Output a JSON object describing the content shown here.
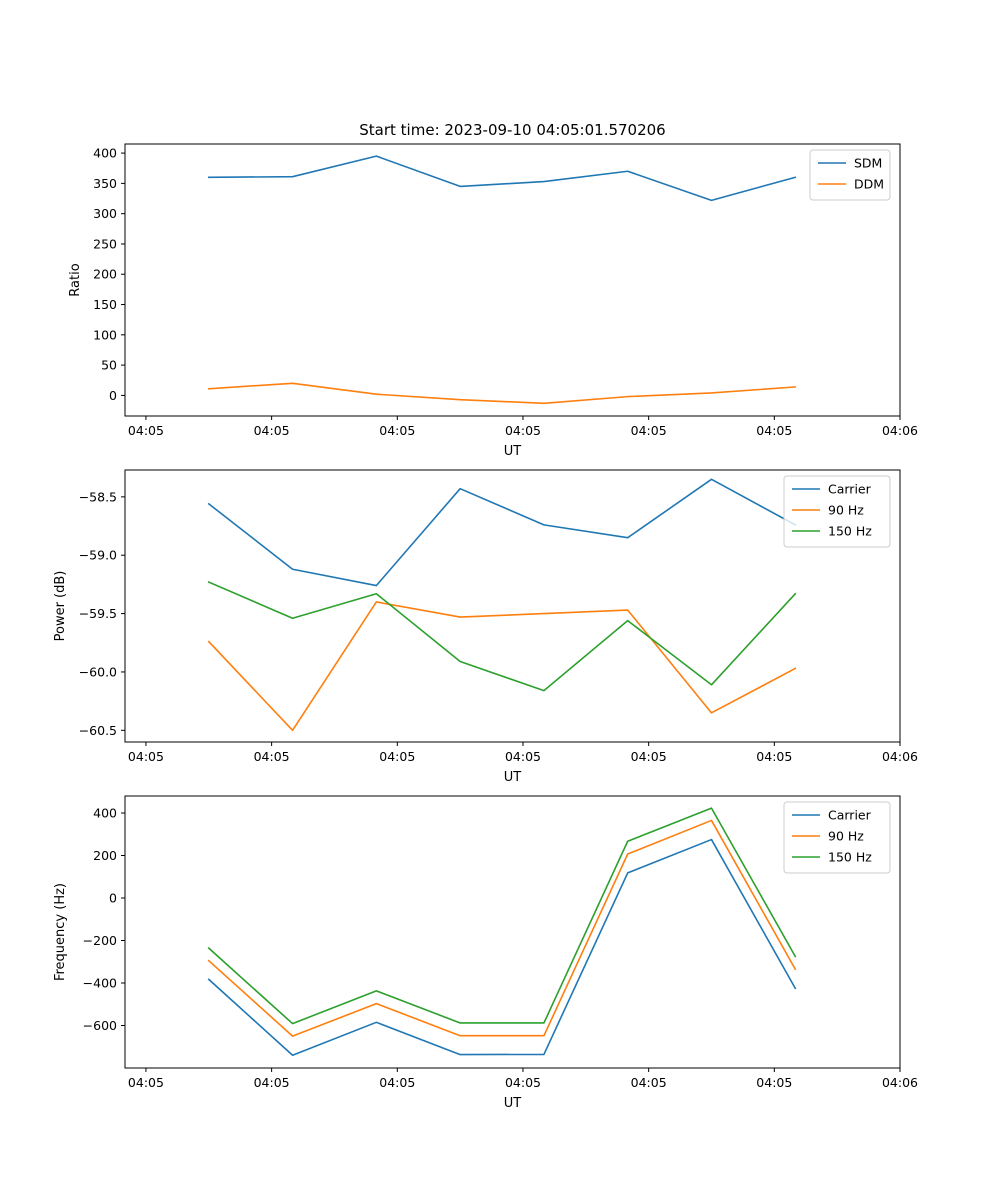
{
  "figure_title": "Start time: 2023-09-10 04:05:01.570206",
  "colors": {
    "blue": "#1f77b4",
    "orange": "#ff7f0e",
    "green": "#2ca02c"
  },
  "chart_data": [
    {
      "type": "line",
      "xlabel": "UT",
      "ylabel": "Ratio",
      "xlim": [
        0,
        9.25
      ],
      "ylim": [
        -34,
        415
      ],
      "x_ticks": [
        0.25,
        1.75,
        3.25,
        4.75,
        6.25,
        7.75,
        9.25
      ],
      "x_tick_labels": [
        "04:05",
        "04:05",
        "04:05",
        "04:05",
        "04:05",
        "04:05",
        "04:06"
      ],
      "y_ticks": [
        0,
        50,
        100,
        150,
        200,
        250,
        300,
        350,
        400
      ],
      "y_tick_labels": [
        "0",
        "50",
        "100",
        "150",
        "200",
        "250",
        "300",
        "350",
        "400"
      ],
      "x": [
        1,
        2,
        3,
        4,
        5,
        6,
        7,
        8
      ],
      "legend": "top-right",
      "series": [
        {
          "name": "SDM",
          "color": "#1f77b4",
          "values": [
            360,
            361,
            395,
            345,
            353,
            370,
            322,
            360
          ]
        },
        {
          "name": "DDM",
          "color": "#ff7f0e",
          "values": [
            11,
            20,
            2,
            -7,
            -13,
            -2,
            4,
            14
          ]
        }
      ]
    },
    {
      "type": "line",
      "xlabel": "UT",
      "ylabel": "Power (dB)",
      "xlim": [
        0,
        9.25
      ],
      "ylim": [
        -60.6,
        -58.27
      ],
      "x_ticks": [
        0.25,
        1.75,
        3.25,
        4.75,
        6.25,
        7.75,
        9.25
      ],
      "x_tick_labels": [
        "04:05",
        "04:05",
        "04:05",
        "04:05",
        "04:05",
        "04:05",
        "04:06"
      ],
      "y_ticks": [
        -58.5,
        -59.0,
        -59.5,
        -60.0,
        -60.5
      ],
      "y_tick_labels": [
        "−58.5",
        "−59.0",
        "−59.5",
        "−60.0",
        "−60.5"
      ],
      "x": [
        1,
        2,
        3,
        4,
        5,
        6,
        7,
        8
      ],
      "legend": "top-right",
      "series": [
        {
          "name": "Carrier",
          "color": "#1f77b4",
          "values": [
            -58.56,
            -59.12,
            -59.26,
            -58.43,
            -58.74,
            -58.85,
            -58.35,
            -58.74
          ]
        },
        {
          "name": "90 Hz",
          "color": "#ff7f0e",
          "values": [
            -59.74,
            -60.5,
            -59.4,
            -59.53,
            -59.5,
            -59.47,
            -60.35,
            -59.97
          ]
        },
        {
          "name": "150 Hz",
          "color": "#2ca02c",
          "values": [
            -59.23,
            -59.54,
            -59.33,
            -59.91,
            -60.16,
            -59.56,
            -60.11,
            -59.33
          ]
        }
      ]
    },
    {
      "type": "line",
      "xlabel": "UT",
      "ylabel": "Frequency (Hz)",
      "xlim": [
        0,
        9.25
      ],
      "ylim": [
        -800,
        480
      ],
      "x_ticks": [
        0.25,
        1.75,
        3.25,
        4.75,
        6.25,
        7.75,
        9.25
      ],
      "x_tick_labels": [
        "04:05",
        "04:05",
        "04:05",
        "04:05",
        "04:05",
        "04:05",
        "04:06"
      ],
      "y_ticks": [
        400,
        200,
        0,
        -200,
        -400,
        -600
      ],
      "y_tick_labels": [
        "400",
        "200",
        "0",
        "−200",
        "−400",
        "−600"
      ],
      "x": [
        1,
        2,
        3,
        4,
        5,
        6,
        7,
        8
      ],
      "legend": "top-right",
      "series": [
        {
          "name": "Carrier",
          "color": "#1f77b4",
          "values": [
            -383,
            -740,
            -585,
            -737,
            -736,
            118,
            275,
            -425
          ]
        },
        {
          "name": "90 Hz",
          "color": "#ff7f0e",
          "values": [
            -295,
            -650,
            -497,
            -648,
            -648,
            207,
            365,
            -335
          ]
        },
        {
          "name": "150 Hz",
          "color": "#2ca02c",
          "values": [
            -236,
            -591,
            -437,
            -588,
            -588,
            267,
            423,
            -275
          ]
        }
      ]
    }
  ]
}
